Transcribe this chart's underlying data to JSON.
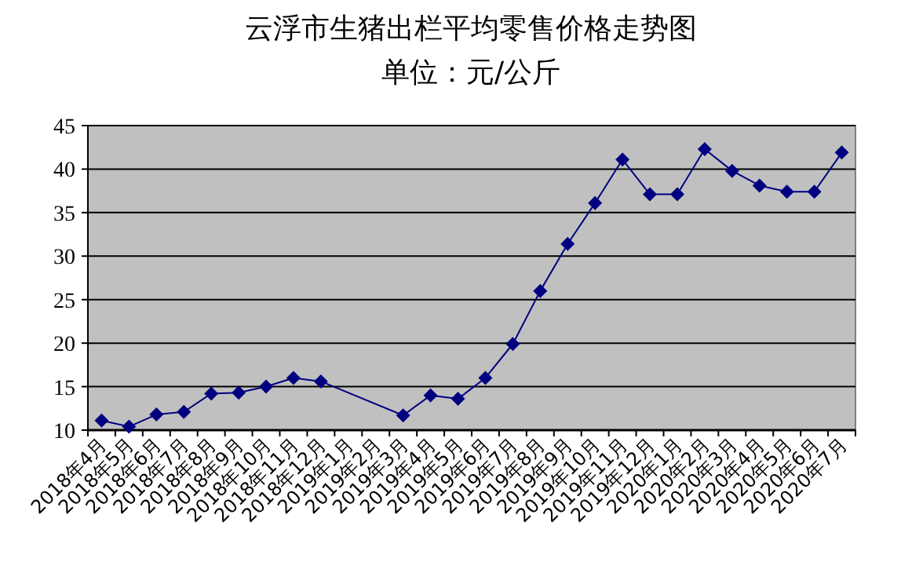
{
  "chart_data": {
    "type": "line",
    "title": "云浮市生猪出栏平均零售价格走势图",
    "subtitle": "单位：元/公斤",
    "categories": [
      "2018年4月",
      "2018年5月",
      "2018年6月",
      "2018年7月",
      "2018年8月",
      "2018年9月",
      "2018年10月",
      "2018年11月",
      "2018年12月",
      "2019年1月",
      "2019年2月",
      "2019年3月",
      "2019年4月",
      "2019年5月",
      "2019年6月",
      "2019年7月",
      "2019年8月",
      "2019年9月",
      "2019年10月",
      "2019年11月",
      "2019年12月",
      "2020年1月",
      "2020年2月",
      "2020年3月",
      "2020年4月",
      "2020年5月",
      "2020年6月",
      "2020年7月"
    ],
    "series": [
      {
        "color": "#000080",
        "values": [
          11.1,
          10.4,
          11.8,
          12.1,
          14.2,
          14.3,
          15.0,
          16.0,
          15.6,
          null,
          null,
          11.7,
          14.0,
          13.6,
          16.0,
          19.9,
          26.0,
          31.4,
          36.1,
          41.1,
          37.1,
          37.1,
          42.3,
          39.8,
          38.1,
          37.4,
          37.4,
          41.9
        ]
      }
    ],
    "ylim": [
      10,
      45
    ],
    "yticks": [
      10,
      15,
      20,
      25,
      30,
      35,
      40,
      45
    ],
    "grid": "y",
    "marker": "diamond",
    "line_style": "solid"
  }
}
